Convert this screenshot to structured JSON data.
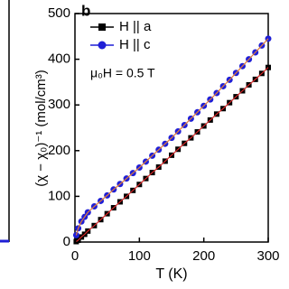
{
  "chart_data": {
    "type": "line",
    "panel_label": "b",
    "annotation": "μ₀H = 0.5 T",
    "x_label": "T (K)",
    "y_label": "(χ − χ₀)⁻¹ (mol/cm³)",
    "x": [
      2,
      5,
      10,
      15,
      20,
      30,
      40,
      50,
      60,
      70,
      80,
      90,
      100,
      110,
      120,
      130,
      140,
      150,
      160,
      170,
      180,
      190,
      200,
      210,
      220,
      230,
      240,
      250,
      260,
      270,
      280,
      290,
      300
    ],
    "series": [
      {
        "name": "H || a",
        "color": "#000000",
        "line_color": "#d62728",
        "marker": "square",
        "values": [
          1,
          4,
          11,
          17,
          24,
          36,
          49,
          62,
          75,
          88,
          100,
          113,
          126,
          139,
          152,
          164,
          177,
          190,
          203,
          216,
          228,
          241,
          254,
          267,
          280,
          292,
          305,
          318,
          331,
          344,
          356,
          369,
          382
        ]
      },
      {
        "name": "H || c",
        "color": "#1f1fd6",
        "line_color": "#e07b39",
        "marker": "circle",
        "values": [
          15,
          30,
          45,
          55,
          65,
          78,
          90,
          102,
          115,
          127,
          139,
          151,
          163,
          176,
          189,
          202,
          215,
          228,
          242,
          256,
          270,
          284,
          298,
          312,
          326,
          341,
          355,
          370,
          385,
          400,
          415,
          430,
          445
        ]
      }
    ],
    "xlim": [
      0,
      300
    ],
    "xticks": [
      0,
      100,
      200,
      300
    ],
    "ylim": [
      0,
      500
    ],
    "yticks": [
      0,
      100,
      200,
      300,
      400,
      500
    ]
  }
}
